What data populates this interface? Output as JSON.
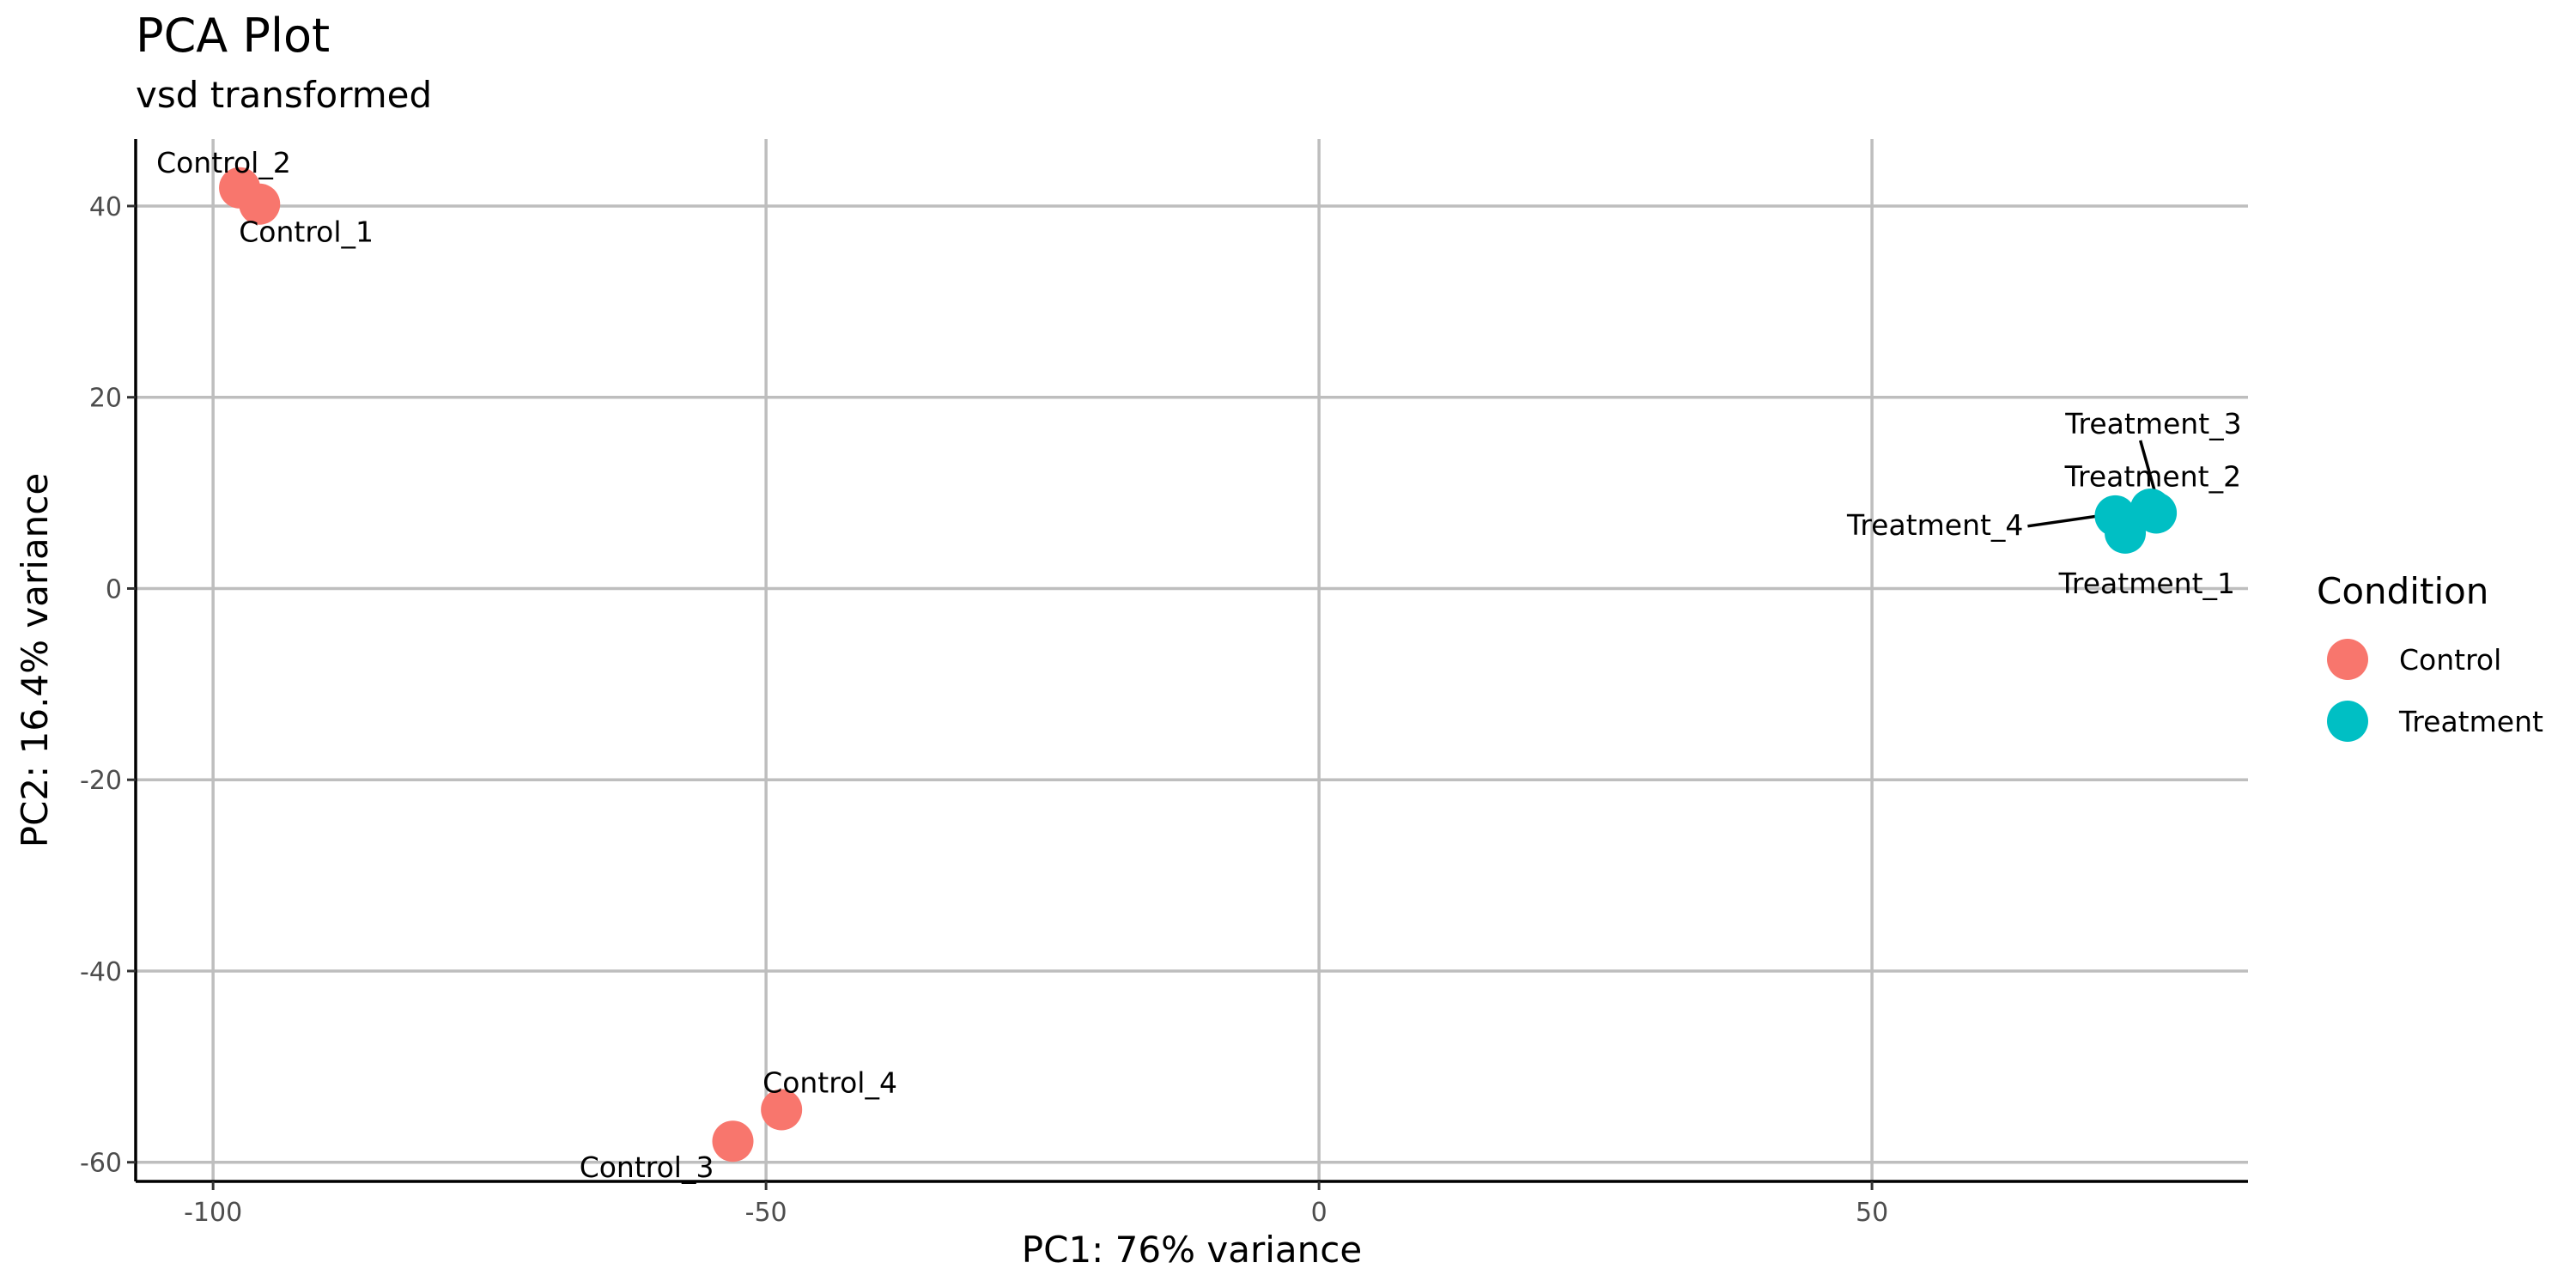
{
  "chart_data": {
    "type": "scatter",
    "title": "PCA Plot",
    "subtitle": "vsd transformed",
    "xlabel": "PC1: 76% variance",
    "ylabel": "PC2: 16.4% variance",
    "xlim": [
      -107,
      84
    ],
    "ylim": [
      -62,
      47
    ],
    "x_ticks": [
      -100,
      -50,
      0,
      50
    ],
    "y_ticks": [
      -60,
      -40,
      -20,
      0,
      20,
      40
    ],
    "grid": true,
    "legend_title": "Condition",
    "legend_position": "right",
    "series": [
      {
        "name": "Control",
        "color": "#F8766D",
        "points": [
          {
            "label": "Control_1",
            "x": -95.8,
            "y": 40.2
          },
          {
            "label": "Control_2",
            "x": -97.6,
            "y": 41.9
          },
          {
            "label": "Control_3",
            "x": -53.0,
            "y": -57.8
          },
          {
            "label": "Control_4",
            "x": -48.6,
            "y": -54.5
          }
        ]
      },
      {
        "name": "Treatment",
        "color": "#00BFC4",
        "points": [
          {
            "label": "Treatment_1",
            "x": 72.9,
            "y": 5.8
          },
          {
            "label": "Treatment_2",
            "x": 75.7,
            "y": 7.9
          },
          {
            "label": "Treatment_3",
            "x": 75.2,
            "y": 8.3
          },
          {
            "label": "Treatment_4",
            "x": 72.0,
            "y": 7.6
          }
        ]
      }
    ]
  }
}
